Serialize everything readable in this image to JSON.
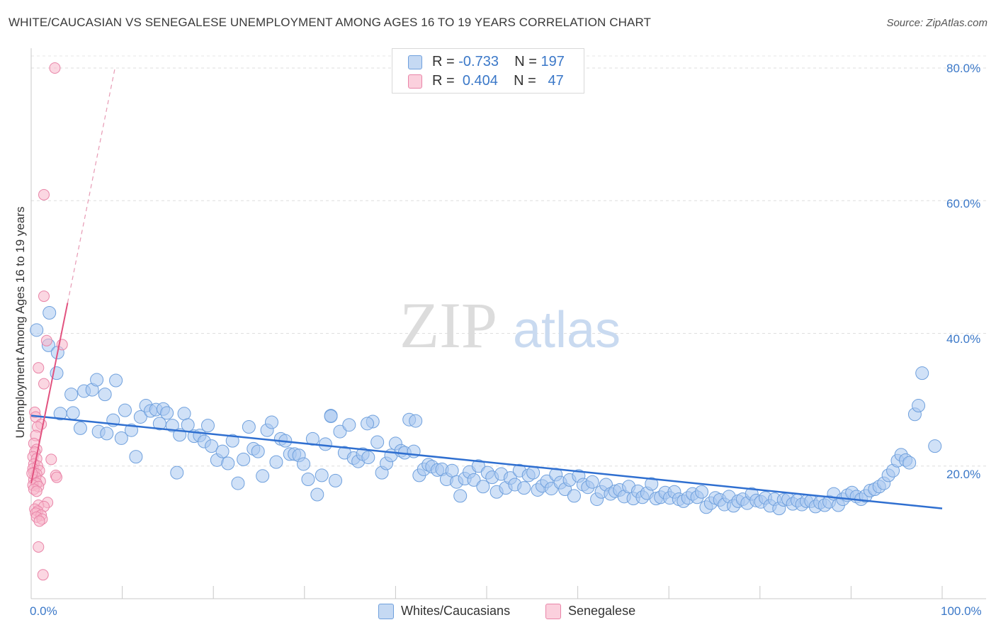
{
  "title": "WHITE/CAUCASIAN VS SENEGALESE UNEMPLOYMENT AMONG AGES 16 TO 19 YEARS CORRELATION CHART",
  "source": "Source: ZipAtlas.com",
  "watermark": {
    "zip": "ZIP",
    "atlas": "atlas"
  },
  "legend": {
    "rows": [
      {
        "r_label": "R =",
        "r_value": "-0.733",
        "n_label": "N =",
        "n_value": "197",
        "color": "#a9c8f0",
        "border": "#6fa0dd"
      },
      {
        "r_label": "R =",
        "r_value": "0.404",
        "n_label": "N =",
        "n_value": "47",
        "color": "#f7b6cb",
        "border": "#e985a8"
      }
    ]
  },
  "bottom_legend": {
    "series1": "Whites/Caucasians",
    "series2": "Senegalese"
  },
  "axes": {
    "ylabel": "Unemployment Among Ages 16 to 19 years",
    "x_min_label": "0.0%",
    "x_max_label": "100.0%",
    "y_tick_labels": [
      "80.0%",
      "60.0%",
      "40.0%",
      "20.0%"
    ]
  },
  "chart_data": {
    "type": "scatter",
    "title": "WHITE/CAUCASIAN VS SENEGALESE UNEMPLOYMENT AMONG AGES 16 TO 19 YEARS CORRELATION CHART",
    "xlabel": "",
    "ylabel": "Unemployment Among Ages 16 to 19 years",
    "xlim": [
      0,
      100
    ],
    "ylim": [
      0,
      82
    ],
    "y_ticks": [
      20,
      40,
      60,
      80
    ],
    "grid": "horizontal dashed",
    "legend_position": "top-center",
    "series": [
      {
        "name": "Whites/Caucasians",
        "color": "#a9c8f0",
        "edge": "#6fa0dd",
        "trend": {
          "x": [
            0,
            100
          ],
          "y": [
            27.6,
            13.6
          ]
        },
        "points": [
          [
            0.6,
            40.5
          ],
          [
            2.0,
            43.1
          ],
          [
            1.9,
            38.2
          ],
          [
            2.9,
            37.1
          ],
          [
            2.8,
            34.0
          ],
          [
            4.4,
            30.8
          ],
          [
            5.8,
            31.3
          ],
          [
            6.7,
            31.5
          ],
          [
            7.2,
            33.0
          ],
          [
            8.1,
            30.8
          ],
          [
            9.3,
            32.9
          ],
          [
            3.2,
            27.9
          ],
          [
            4.6,
            28.0
          ],
          [
            5.4,
            25.7
          ],
          [
            7.4,
            25.2
          ],
          [
            8.3,
            24.9
          ],
          [
            9.0,
            26.9
          ],
          [
            9.9,
            24.2
          ],
          [
            10.3,
            28.4
          ],
          [
            11.0,
            25.4
          ],
          [
            11.5,
            21.4
          ],
          [
            12.0,
            27.4
          ],
          [
            12.6,
            29.1
          ],
          [
            13.1,
            28.3
          ],
          [
            13.7,
            28.5
          ],
          [
            14.1,
            26.4
          ],
          [
            14.5,
            28.6
          ],
          [
            14.9,
            28.0
          ],
          [
            15.5,
            26.1
          ],
          [
            16.0,
            19.0
          ],
          [
            16.3,
            24.7
          ],
          [
            16.8,
            27.9
          ],
          [
            17.2,
            26.2
          ],
          [
            17.9,
            24.5
          ],
          [
            18.5,
            24.6
          ],
          [
            19.0,
            23.7
          ],
          [
            19.4,
            26.1
          ],
          [
            19.8,
            23.0
          ],
          [
            20.4,
            20.9
          ],
          [
            21.0,
            22.2
          ],
          [
            21.6,
            20.4
          ],
          [
            22.1,
            23.8
          ],
          [
            22.7,
            17.4
          ],
          [
            23.3,
            21.0
          ],
          [
            23.9,
            25.9
          ],
          [
            24.4,
            22.6
          ],
          [
            24.9,
            22.2
          ],
          [
            25.4,
            18.5
          ],
          [
            25.9,
            25.4
          ],
          [
            26.4,
            26.6
          ],
          [
            26.9,
            20.6
          ],
          [
            27.4,
            24.1
          ],
          [
            27.9,
            23.8
          ],
          [
            28.4,
            21.8
          ],
          [
            28.9,
            21.8
          ],
          [
            29.4,
            21.6
          ],
          [
            29.9,
            20.3
          ],
          [
            30.4,
            18.0
          ],
          [
            30.9,
            24.1
          ],
          [
            31.4,
            15.7
          ],
          [
            31.9,
            18.6
          ],
          [
            32.3,
            23.3
          ],
          [
            32.9,
            27.6
          ],
          [
            33.4,
            17.8
          ],
          [
            33.9,
            25.2
          ],
          [
            34.4,
            22.0
          ],
          [
            34.9,
            26.2
          ],
          [
            35.4,
            21.2
          ],
          [
            35.9,
            20.7
          ],
          [
            36.4,
            21.8
          ],
          [
            37.0,
            21.3
          ],
          [
            37.5,
            26.7
          ],
          [
            38.0,
            23.6
          ],
          [
            38.5,
            19.0
          ],
          [
            39.0,
            20.4
          ],
          [
            39.5,
            21.6
          ],
          [
            40.0,
            23.4
          ],
          [
            40.6,
            22.3
          ],
          [
            41.0,
            22.0
          ],
          [
            41.5,
            27.0
          ],
          [
            42.0,
            22.2
          ],
          [
            42.6,
            18.6
          ],
          [
            43.1,
            19.5
          ],
          [
            43.6,
            20.2
          ],
          [
            44.0,
            19.9
          ],
          [
            44.6,
            19.4
          ],
          [
            45.1,
            19.5
          ],
          [
            45.6,
            18.0
          ],
          [
            46.2,
            19.3
          ],
          [
            46.7,
            17.6
          ],
          [
            47.1,
            15.5
          ],
          [
            47.6,
            18.1
          ],
          [
            48.1,
            19.1
          ],
          [
            48.6,
            17.9
          ],
          [
            49.1,
            20.0
          ],
          [
            49.6,
            16.9
          ],
          [
            50.1,
            19.0
          ],
          [
            50.6,
            18.3
          ],
          [
            51.1,
            16.1
          ],
          [
            51.6,
            18.8
          ],
          [
            52.1,
            16.7
          ],
          [
            52.6,
            18.2
          ],
          [
            53.1,
            17.2
          ],
          [
            53.6,
            19.3
          ],
          [
            54.1,
            16.7
          ],
          [
            54.6,
            18.6
          ],
          [
            55.1,
            19.0
          ],
          [
            55.6,
            16.4
          ],
          [
            56.1,
            17.0
          ],
          [
            56.6,
            17.7
          ],
          [
            57.1,
            16.6
          ],
          [
            57.6,
            18.7
          ],
          [
            58.1,
            17.5
          ],
          [
            58.6,
            16.5
          ],
          [
            59.1,
            17.9
          ],
          [
            59.6,
            15.5
          ],
          [
            60.1,
            18.5
          ],
          [
            60.6,
            17.2
          ],
          [
            61.1,
            16.8
          ],
          [
            61.6,
            17.6
          ],
          [
            62.1,
            15.0
          ],
          [
            62.6,
            16.1
          ],
          [
            63.1,
            17.2
          ],
          [
            63.6,
            15.8
          ],
          [
            64.1,
            16.2
          ],
          [
            64.6,
            16.4
          ],
          [
            65.1,
            15.4
          ],
          [
            65.6,
            16.9
          ],
          [
            66.1,
            15.1
          ],
          [
            66.6,
            16.2
          ],
          [
            67.1,
            15.3
          ],
          [
            67.6,
            15.9
          ],
          [
            68.1,
            17.3
          ],
          [
            68.6,
            15.1
          ],
          [
            69.1,
            15.3
          ],
          [
            69.6,
            16.0
          ],
          [
            70.1,
            15.2
          ],
          [
            70.6,
            16.1
          ],
          [
            71.1,
            15.0
          ],
          [
            71.6,
            14.7
          ],
          [
            72.1,
            15.2
          ],
          [
            72.6,
            15.8
          ],
          [
            73.1,
            15.3
          ],
          [
            73.6,
            16.1
          ],
          [
            74.1,
            13.8
          ],
          [
            74.6,
            14.4
          ],
          [
            75.1,
            15.2
          ],
          [
            75.6,
            14.9
          ],
          [
            76.1,
            14.2
          ],
          [
            76.6,
            15.4
          ],
          [
            77.1,
            14.0
          ],
          [
            77.6,
            14.7
          ],
          [
            78.1,
            15.0
          ],
          [
            78.6,
            14.4
          ],
          [
            79.1,
            15.8
          ],
          [
            79.6,
            14.8
          ],
          [
            80.1,
            14.6
          ],
          [
            80.6,
            15.2
          ],
          [
            81.1,
            14.0
          ],
          [
            81.6,
            15.0
          ],
          [
            82.1,
            13.6
          ],
          [
            82.6,
            14.9
          ],
          [
            83.1,
            15.0
          ],
          [
            83.6,
            14.3
          ],
          [
            84.1,
            14.8
          ],
          [
            84.6,
            14.2
          ],
          [
            85.1,
            14.7
          ],
          [
            85.6,
            14.7
          ],
          [
            86.1,
            13.9
          ],
          [
            86.6,
            14.5
          ],
          [
            87.1,
            14.1
          ],
          [
            87.6,
            14.6
          ],
          [
            88.1,
            15.8
          ],
          [
            88.6,
            14.1
          ],
          [
            89.1,
            15.0
          ],
          [
            89.6,
            15.6
          ],
          [
            90.1,
            16.0
          ],
          [
            90.6,
            15.4
          ],
          [
            91.1,
            15.0
          ],
          [
            91.6,
            15.5
          ],
          [
            92.1,
            16.3
          ],
          [
            92.6,
            16.5
          ],
          [
            93.1,
            16.9
          ],
          [
            93.6,
            17.4
          ],
          [
            94.1,
            18.6
          ],
          [
            94.6,
            19.3
          ],
          [
            95.1,
            20.8
          ],
          [
            95.5,
            21.7
          ],
          [
            96.0,
            20.9
          ],
          [
            96.4,
            20.5
          ],
          [
            97.0,
            27.8
          ],
          [
            97.4,
            29.1
          ],
          [
            97.8,
            34.0
          ],
          [
            99.2,
            23.0
          ],
          [
            32.9,
            27.5
          ],
          [
            42.2,
            26.8
          ],
          [
            36.9,
            26.4
          ]
        ]
      },
      {
        "name": "Senegalese",
        "color": "#f7b6cb",
        "edge": "#e985a8",
        "trend": {
          "x": [
            0,
            4.0
          ],
          "y": [
            17.4,
            44.6
          ]
        },
        "trend_dashed": {
          "x": [
            4.0,
            9.2
          ],
          "y": [
            44.6,
            80.0
          ]
        },
        "points": [
          [
            2.6,
            80.0
          ],
          [
            1.4,
            60.9
          ],
          [
            1.4,
            45.6
          ],
          [
            1.7,
            38.9
          ],
          [
            3.4,
            38.3
          ],
          [
            0.8,
            34.8
          ],
          [
            1.4,
            32.4
          ],
          [
            0.4,
            28.1
          ],
          [
            0.5,
            27.4
          ],
          [
            1.1,
            26.3
          ],
          [
            0.7,
            25.9
          ],
          [
            0.5,
            24.6
          ],
          [
            0.3,
            23.4
          ],
          [
            0.6,
            22.5
          ],
          [
            0.4,
            22.1
          ],
          [
            0.2,
            21.4
          ],
          [
            0.6,
            21.1
          ],
          [
            2.2,
            21.0
          ],
          [
            0.3,
            20.3
          ],
          [
            0.7,
            20.0
          ],
          [
            0.2,
            19.6
          ],
          [
            0.9,
            19.3
          ],
          [
            0.3,
            19.0
          ],
          [
            0.6,
            18.8
          ],
          [
            2.7,
            18.6
          ],
          [
            2.8,
            18.3
          ],
          [
            0.5,
            18.3
          ],
          [
            0.3,
            17.9
          ],
          [
            1.0,
            17.7
          ],
          [
            0.6,
            17.4
          ],
          [
            0.2,
            17.1
          ],
          [
            0.8,
            16.9
          ],
          [
            0.3,
            16.5
          ],
          [
            0.6,
            16.2
          ],
          [
            1.8,
            14.5
          ],
          [
            0.8,
            14.1
          ],
          [
            1.4,
            13.9
          ],
          [
            0.4,
            13.5
          ],
          [
            0.7,
            13.2
          ],
          [
            0.5,
            12.9
          ],
          [
            1.1,
            12.6
          ],
          [
            0.6,
            12.3
          ],
          [
            1.2,
            12.0
          ],
          [
            0.9,
            11.7
          ],
          [
            0.8,
            7.8
          ],
          [
            1.3,
            3.6
          ],
          [
            0.1,
            18.9
          ]
        ]
      }
    ]
  }
}
